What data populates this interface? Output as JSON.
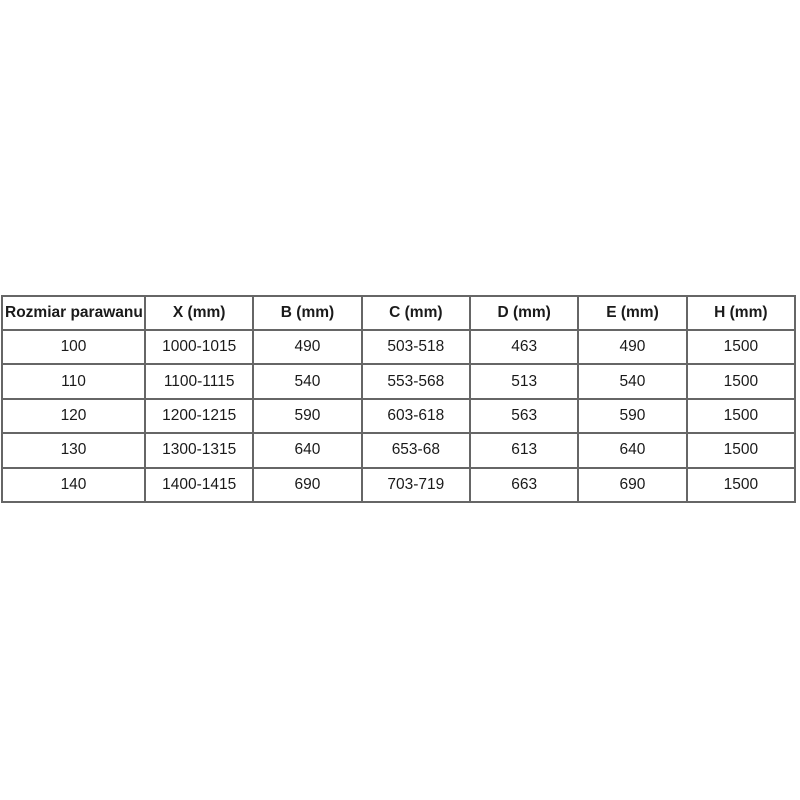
{
  "page": {
    "background_color": "#ffffff",
    "text_color": "#1a1a1a",
    "table_border_color": "#666666"
  },
  "chart_data": {
    "type": "table",
    "columns": [
      "Rozmiar parawanu",
      "X (mm)",
      "B (mm)",
      "C (mm)",
      "D (mm)",
      "E (mm)",
      "H (mm)"
    ],
    "rows": [
      [
        "100",
        "1000-1015",
        "490",
        "503-518",
        "463",
        "490",
        "1500"
      ],
      [
        "110",
        "1100-1115",
        "540",
        "553-568",
        "513",
        "540",
        "1500"
      ],
      [
        "120",
        "1200-1215",
        "590",
        "603-618",
        "563",
        "590",
        "1500"
      ],
      [
        "130",
        "1300-1315",
        "640",
        "653-68",
        "613",
        "640",
        "1500"
      ],
      [
        "140",
        "1400-1415",
        "690",
        "703-719",
        "663",
        "690",
        "1500"
      ]
    ],
    "layout": {
      "header_bold": true,
      "cell_alignment": "center",
      "grid": true
    }
  }
}
